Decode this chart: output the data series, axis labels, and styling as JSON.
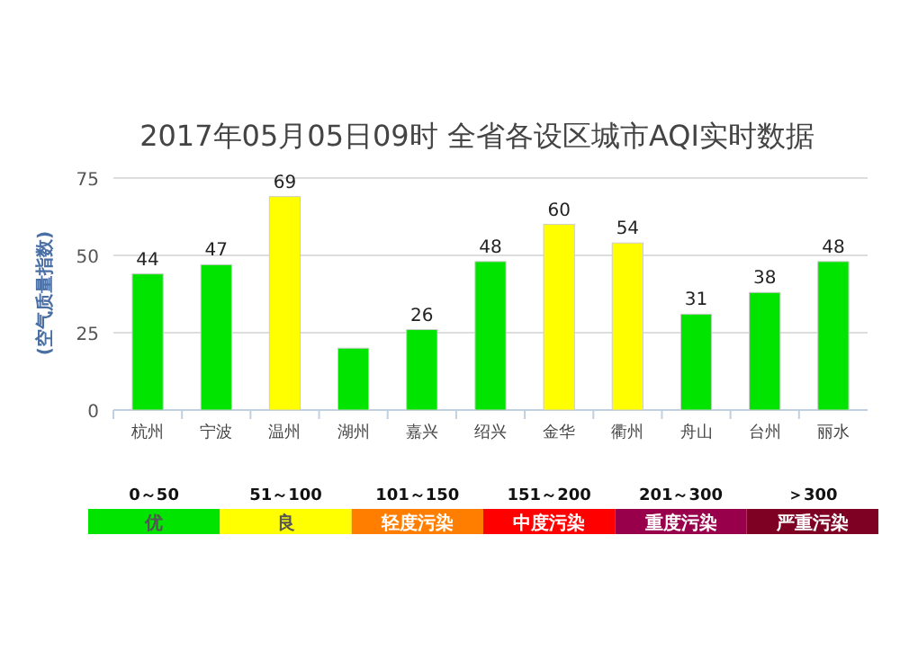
{
  "chart_data": [
    {
      "type": "bar",
      "title": "2017年05月05日09时 全省各设区城市AQI实时数据",
      "ylabel": "(空气质量指数)",
      "categories": [
        "杭州",
        "宁波",
        "温州",
        "湖州",
        "嘉兴",
        "绍兴",
        "金华",
        "衢州",
        "舟山",
        "台州",
        "丽水"
      ],
      "values": [
        44,
        47,
        69,
        20,
        26,
        48,
        60,
        54,
        31,
        38,
        48
      ],
      "value_labels": [
        "44",
        "47",
        "69",
        null,
        "26",
        "48",
        "60",
        "54",
        "31",
        "38",
        "48"
      ],
      "colors": [
        "#00e400",
        "#00e400",
        "#ffff00",
        "#00e400",
        "#00e400",
        "#00e400",
        "#ffff00",
        "#ffff00",
        "#00e400",
        "#00e400",
        "#00e400"
      ],
      "ylim": [
        0,
        75
      ],
      "yticks": [
        0,
        25,
        50,
        75
      ],
      "grid": "y"
    },
    {
      "type": "other",
      "categories": [
        "优",
        "良",
        "轻度污染",
        "中度污染",
        "重度污染",
        "严重污染"
      ],
      "colors": [
        "#00e400",
        "#ffff00",
        "#ff7e00",
        "#ff0000",
        "#99004c",
        "#7e0023"
      ],
      "annotations": [
        "0～50",
        "51～100",
        "101～150",
        "151～200",
        "201～300",
        "＞300"
      ]
    }
  ]
}
